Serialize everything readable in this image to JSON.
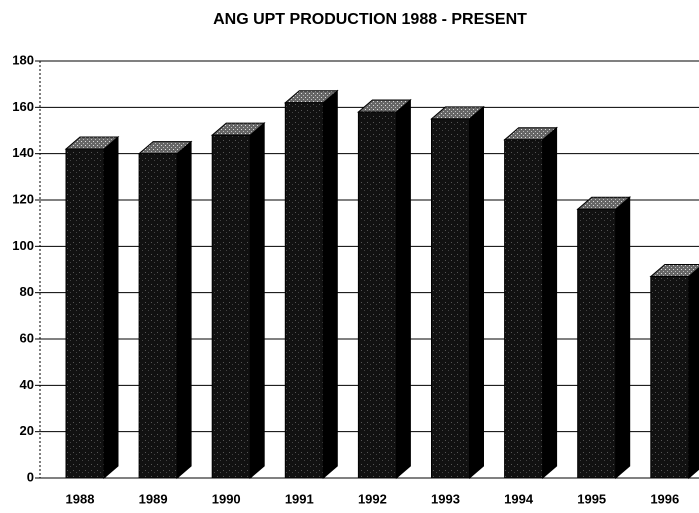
{
  "chart_data": {
    "type": "bar3d",
    "title": "ANG UPT PRODUCTION 1988 - PRESENT",
    "categories": [
      "1988",
      "1989",
      "1990",
      "1991",
      "1992",
      "1993",
      "1994",
      "1995",
      "1996"
    ],
    "values": [
      142,
      140,
      148,
      162,
      158,
      155,
      146,
      116,
      87
    ],
    "color": "#111111",
    "ylim": [
      0,
      180
    ],
    "yticks": [
      0,
      20,
      40,
      60,
      80,
      100,
      120,
      140,
      160,
      180
    ],
    "grid": true
  }
}
